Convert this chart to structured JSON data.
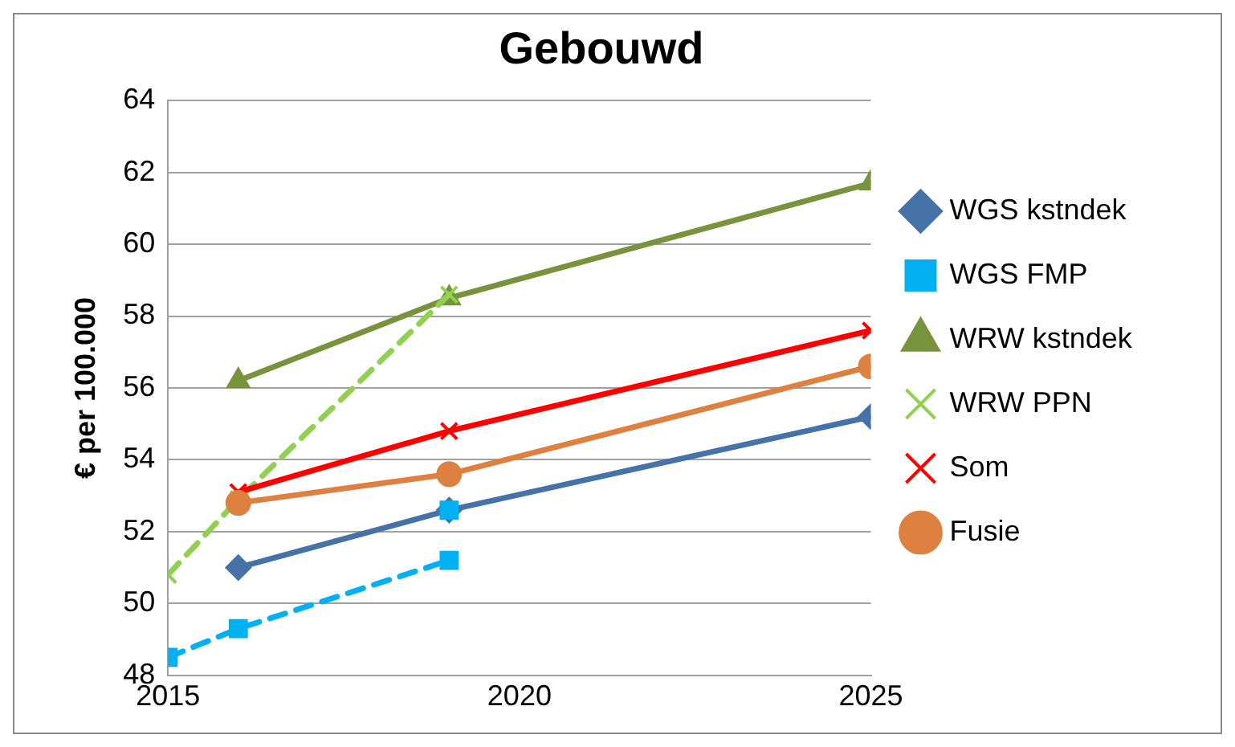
{
  "chart_data": {
    "type": "line",
    "title": "Gebouwd",
    "ylabel": "€ per 100.000",
    "xlim": [
      2015,
      2025
    ],
    "xticks": [
      2015,
      2020,
      2025
    ],
    "ylim": [
      48,
      64
    ],
    "yticks": [
      48,
      50,
      52,
      54,
      56,
      58,
      60,
      62,
      64
    ],
    "grid": "y",
    "legend": "right",
    "series": [
      {
        "name": "WGS kstndek",
        "color": "#4572a7",
        "marker": "diamond",
        "line_style": "solid",
        "x": [
          2016,
          2019,
          2025
        ],
        "values": [
          51.0,
          52.6,
          55.2
        ]
      },
      {
        "name": "WGS FMP",
        "color": "#00b0f0",
        "marker": "square",
        "line_style": "dashed",
        "x": [
          2015,
          2016,
          2019,
          null,
          2019
        ],
        "values": [
          48.5,
          49.3,
          51.2,
          null,
          52.6
        ]
      },
      {
        "name": "WRW kstndek",
        "color": "#77933c",
        "marker": "triangle",
        "line_style": "solid",
        "x": [
          2016,
          2019,
          2025
        ],
        "values": [
          56.2,
          58.5,
          61.7
        ]
      },
      {
        "name": "WRW PPN",
        "color": "#92d050",
        "marker": "cross",
        "line_style": "dashed",
        "x": [
          2015,
          2016,
          2019
        ],
        "values": [
          50.8,
          52.9,
          58.6
        ]
      },
      {
        "name": "Som",
        "color": "#ff0000",
        "marker": "cross",
        "line_style": "solid",
        "x": [
          2016,
          2019,
          2025
        ],
        "values": [
          53.1,
          54.8,
          57.6
        ]
      },
      {
        "name": "Fusie",
        "color": "#dd8040",
        "marker": "circle",
        "line_style": "solid",
        "x": [
          2016,
          2019,
          2025
        ],
        "values": [
          52.8,
          53.6,
          56.6
        ]
      }
    ]
  }
}
